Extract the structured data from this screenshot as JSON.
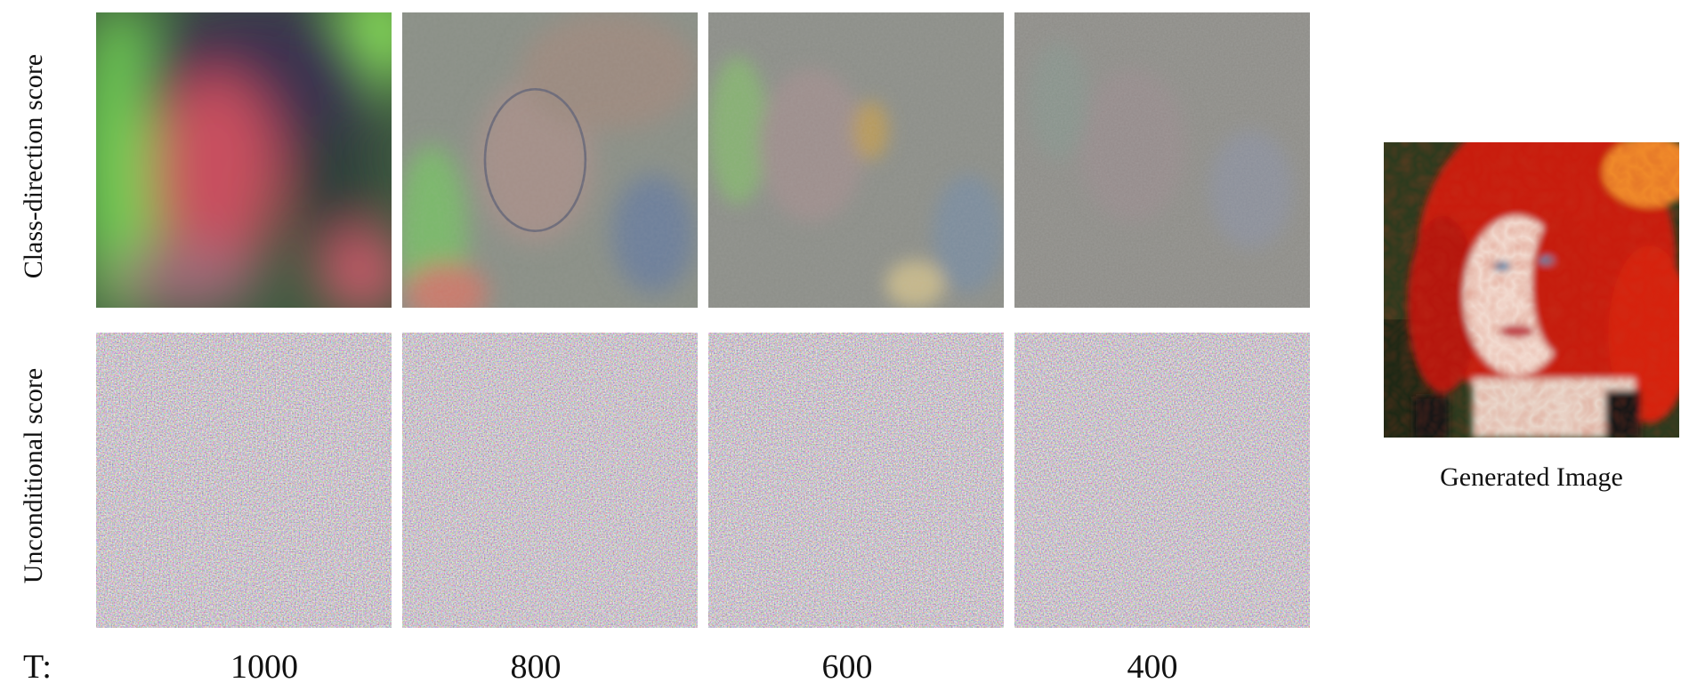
{
  "rows": [
    {
      "label": "Class-direction score"
    },
    {
      "label": "Unconditional score"
    }
  ],
  "timesteps": {
    "prefix": "T:",
    "values": [
      "1000",
      "800",
      "600",
      "400"
    ]
  },
  "generated": {
    "caption": "Generated Image"
  }
}
